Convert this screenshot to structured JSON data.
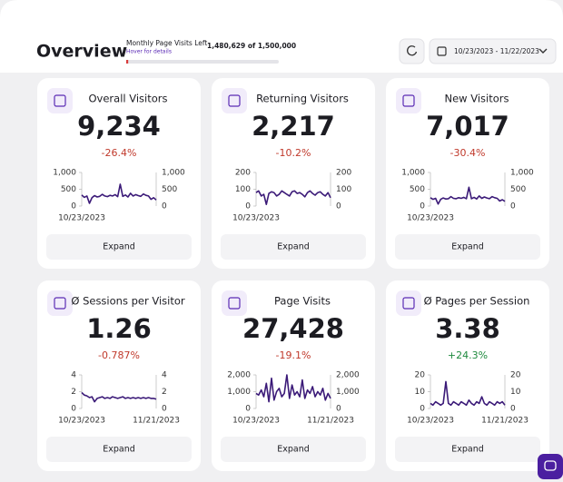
{
  "header": {
    "title": "Overview",
    "quota_label": "Monthly Page Visits Left",
    "quota_hint": "Hover for details",
    "quota": {
      "value": 1480629,
      "total": 1500000,
      "label": "1,480,629 of 1,500,000"
    },
    "date_range": "10/23/2023 - 11/22/2023"
  },
  "cards": [
    {
      "title": "Overall Visitors",
      "value": "9,234",
      "change": "-26.4%",
      "change_color": "#c0392b",
      "button": "Expand",
      "chart": {
        "ylim": [
          0,
          1000
        ],
        "yticks": [
          0,
          500,
          {
            "value": 1000,
            "label": "1,000"
          }
        ],
        "x_labels": [
          "10/23/2023"
        ],
        "color": "#3b1a78",
        "values": [
          330,
          260,
          300,
          80,
          250,
          310,
          270,
          290,
          350,
          300,
          280,
          320,
          300,
          340,
          280,
          650,
          290,
          330,
          270,
          380,
          300,
          340,
          310,
          290,
          360,
          320,
          300,
          200,
          250,
          180
        ]
      }
    },
    {
      "title": "Returning Visitors",
      "value": "2,217",
      "change": "-10.2%",
      "change_color": "#c0392b",
      "button": "Expand",
      "chart": {
        "ylim": [
          0,
          200
        ],
        "yticks": [
          0,
          100,
          200
        ],
        "x_labels": [
          "10/23/2023"
        ],
        "color": "#3b1a78",
        "values": [
          80,
          90,
          60,
          70,
          10,
          75,
          85,
          80,
          60,
          70,
          90,
          80,
          70,
          60,
          85,
          90,
          75,
          80,
          70,
          55,
          80,
          90,
          75,
          65,
          80,
          85,
          70,
          60,
          80,
          50
        ]
      }
    },
    {
      "title": "New Visitors",
      "value": "7,017",
      "change": "-30.4%",
      "change_color": "#c0392b",
      "button": "Expand",
      "chart": {
        "ylim": [
          0,
          1000
        ],
        "yticks": [
          0,
          500,
          {
            "value": 1000,
            "label": "1,000"
          }
        ],
        "x_labels": [
          "10/23/2023"
        ],
        "color": "#3b1a78",
        "values": [
          250,
          200,
          230,
          60,
          200,
          240,
          210,
          220,
          280,
          230,
          220,
          250,
          230,
          260,
          220,
          560,
          220,
          260,
          210,
          300,
          230,
          270,
          240,
          220,
          280,
          250,
          230,
          150,
          190,
          140
        ]
      }
    },
    {
      "title": "Ø Sessions per Visitor",
      "value": "1.26",
      "change": "-0.787%",
      "change_color": "#c0392b",
      "button": "Expand",
      "chart": {
        "ylim": [
          0,
          4
        ],
        "yticks": [
          0,
          2,
          4
        ],
        "x_labels": [
          "10/23/2023",
          "11/21/2023"
        ],
        "color": "#3b1a78",
        "values": [
          1.9,
          1.6,
          1.5,
          1.3,
          1.4,
          0.8,
          1.2,
          1.3,
          1.4,
          1.2,
          1.3,
          1.2,
          1.4,
          1.3,
          1.2,
          1.3,
          1.4,
          1.2,
          1.3,
          1.2,
          1.3,
          1.2,
          1.3,
          1.2,
          1.3,
          1.2,
          1.3,
          1.2,
          1.2,
          1.1
        ]
      }
    },
    {
      "title": "Page Visits",
      "value": "27,428",
      "change": "-19.1%",
      "change_color": "#c0392b",
      "button": "Expand",
      "chart": {
        "ylim": [
          0,
          2000
        ],
        "yticks": [
          0,
          {
            "value": 1000,
            "label": "1,000"
          },
          {
            "value": 2000,
            "label": "2,000"
          }
        ],
        "x_labels": [
          "10/23/2023",
          "11/21/2023"
        ],
        "color": "#3b1a78",
        "values": [
          900,
          800,
          1100,
          700,
          1500,
          400,
          1800,
          500,
          1000,
          1200,
          700,
          900,
          2000,
          600,
          1400,
          800,
          1000,
          700,
          1700,
          600,
          1100,
          900,
          1300,
          700,
          1000,
          800,
          1200,
          500,
          900,
          600
        ]
      }
    },
    {
      "title": "Ø Pages per Session",
      "value": "3.38",
      "change": "+24.3%",
      "change_color": "#1e8a3e",
      "button": "Expand",
      "chart": {
        "ylim": [
          0,
          20
        ],
        "yticks": [
          0,
          10,
          20
        ],
        "x_labels": [
          "10/23/2023",
          "11/21/2023"
        ],
        "color": "#3b1a78",
        "values": [
          3,
          2,
          4,
          3,
          2,
          3,
          16,
          3,
          2,
          4,
          3,
          2,
          4,
          3,
          2,
          5,
          3,
          2,
          4,
          3,
          7,
          3,
          2,
          4,
          3,
          2,
          4,
          3,
          4,
          2
        ]
      }
    }
  ]
}
